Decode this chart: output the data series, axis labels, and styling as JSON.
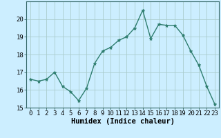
{
  "title": "",
  "xlabel": "Humidex (Indice chaleur)",
  "x_values": [
    0,
    1,
    2,
    3,
    4,
    5,
    6,
    7,
    8,
    9,
    10,
    11,
    12,
    13,
    14,
    15,
    16,
    17,
    18,
    19,
    20,
    21,
    22,
    23
  ],
  "y_values": [
    16.6,
    16.5,
    16.6,
    17.0,
    16.2,
    15.9,
    15.4,
    16.1,
    17.5,
    18.2,
    18.4,
    18.8,
    19.0,
    19.5,
    20.5,
    18.9,
    19.7,
    19.65,
    19.65,
    19.1,
    18.2,
    17.4,
    16.2,
    15.2
  ],
  "line_color": "#2e7d6e",
  "marker": "*",
  "marker_size": 3.5,
  "bg_color": "#cceeff",
  "grid_color": "#aacccc",
  "ylim": [
    15,
    21
  ],
  "xlim": [
    -0.5,
    23.5
  ],
  "yticks": [
    15,
    16,
    17,
    18,
    19,
    20
  ],
  "xticks": [
    0,
    1,
    2,
    3,
    4,
    5,
    6,
    7,
    8,
    9,
    10,
    11,
    12,
    13,
    14,
    15,
    16,
    17,
    18,
    19,
    20,
    21,
    22,
    23
  ],
  "tick_fontsize": 6.5,
  "xlabel_fontsize": 7.5,
  "line_width": 1.0
}
